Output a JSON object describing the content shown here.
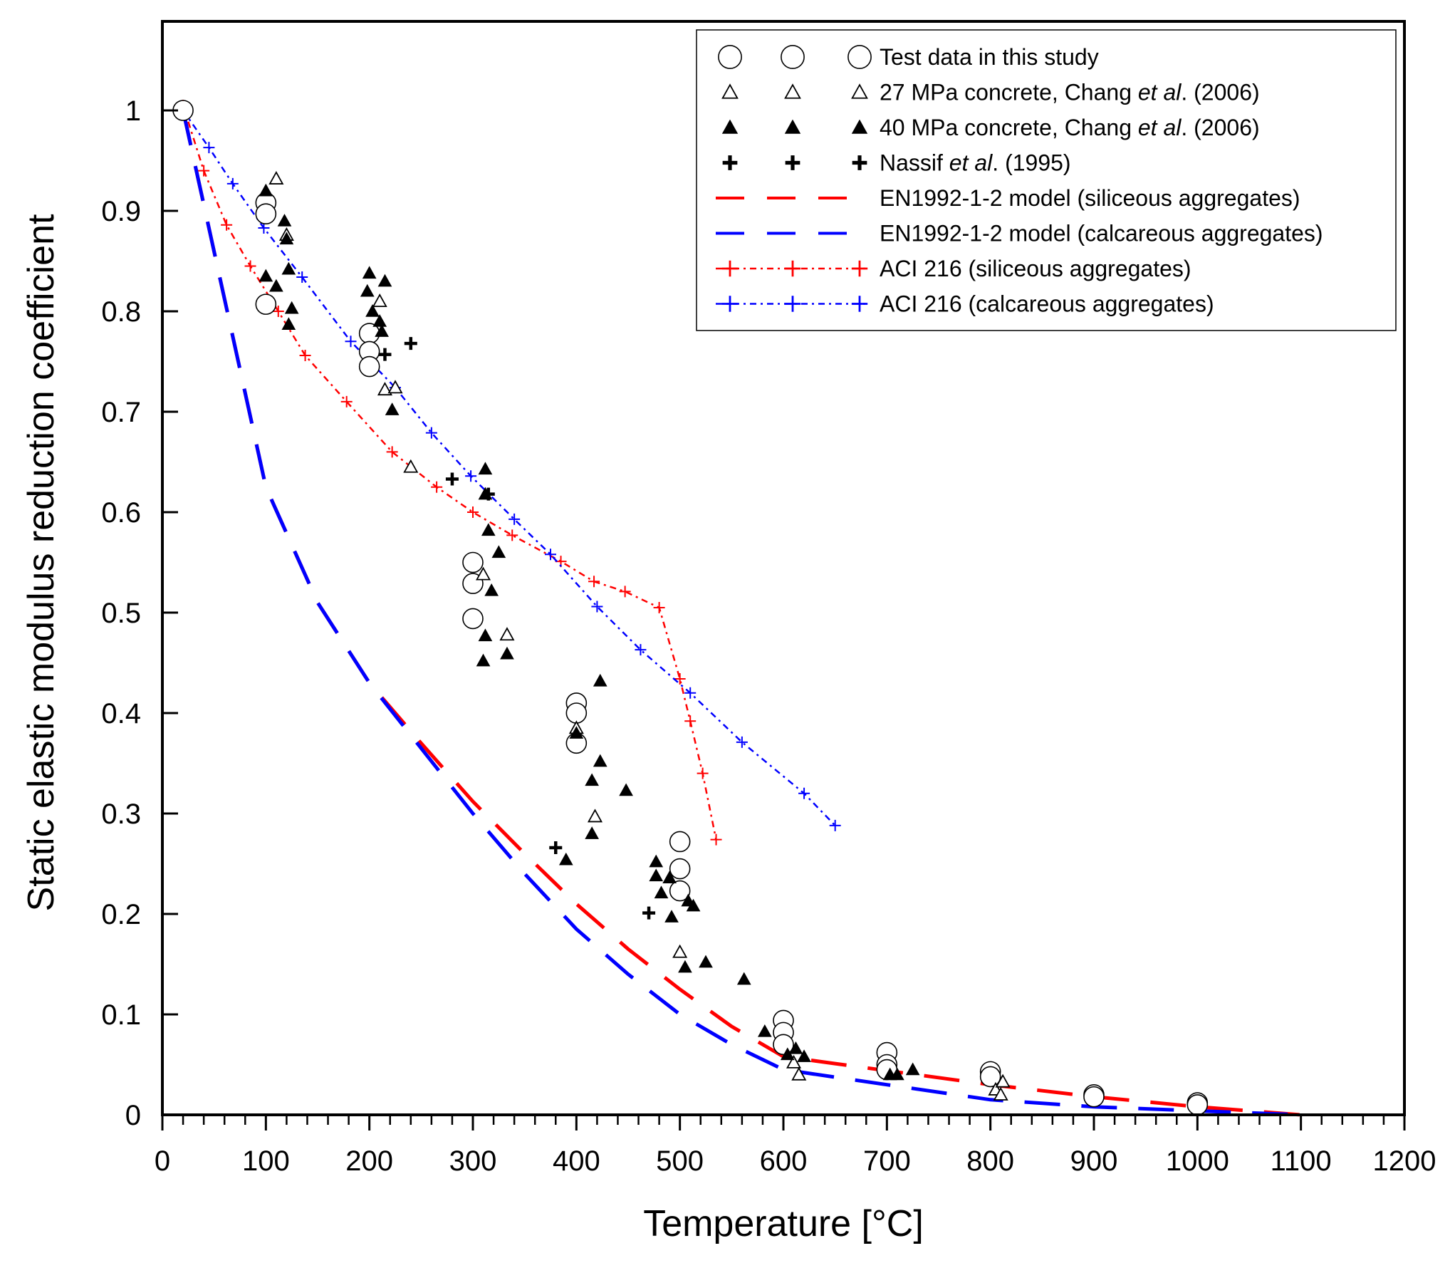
{
  "chart_data": {
    "type": "scatter",
    "xlabel": "Temperature [°C]",
    "ylabel": "Static elastic modulus reduction coefficient",
    "xlim": [
      0,
      1200
    ],
    "ylim": [
      0,
      1.1
    ],
    "x_ticks": [
      0,
      100,
      200,
      300,
      400,
      500,
      600,
      700,
      800,
      900,
      1000,
      1100,
      1200
    ],
    "y_ticks": [
      0,
      0.1,
      0.2,
      0.3,
      0.4,
      0.5,
      0.6,
      0.7,
      0.8,
      0.9,
      1
    ],
    "x_tick_labels": [
      "0",
      "100",
      "200",
      "300",
      "400",
      "500",
      "600",
      "700",
      "800",
      "900",
      "1000",
      "1100",
      "1200"
    ],
    "y_tick_labels": [
      "0",
      "0.1",
      "0.2",
      "0.3",
      "0.4",
      "0.5",
      "0.6",
      "0.7",
      "0.8",
      "0.9",
      "1"
    ],
    "grid": false,
    "legend_position": "top-right",
    "colors": {
      "red": "#ff0000",
      "blue": "#0000ff",
      "black": "#000000"
    },
    "series": [
      {
        "name": "Test data in this study",
        "legend_label": "Test data in this study",
        "marker": "open-circle",
        "color": "#000000",
        "points": [
          [
            20,
            1.0
          ],
          [
            100,
            0.908
          ],
          [
            100,
            0.897
          ],
          [
            100,
            0.807
          ],
          [
            200,
            0.778
          ],
          [
            200,
            0.76
          ],
          [
            200,
            0.745
          ],
          [
            300,
            0.55
          ],
          [
            300,
            0.529
          ],
          [
            300,
            0.494
          ],
          [
            400,
            0.41
          ],
          [
            400,
            0.4
          ],
          [
            400,
            0.37
          ],
          [
            500,
            0.272
          ],
          [
            500,
            0.245
          ],
          [
            500,
            0.223
          ],
          [
            600,
            0.094
          ],
          [
            600,
            0.082
          ],
          [
            600,
            0.07
          ],
          [
            700,
            0.062
          ],
          [
            700,
            0.05
          ],
          [
            700,
            0.045
          ],
          [
            800,
            0.043
          ],
          [
            800,
            0.038
          ],
          [
            900,
            0.02
          ],
          [
            900,
            0.018
          ],
          [
            1000,
            0.012
          ],
          [
            1000,
            0.01
          ]
        ]
      },
      {
        "name": "27 MPa concrete, Chang et al. (2006)",
        "legend_label_prefix": "27 MPa concrete, Chang ",
        "legend_label_italic": "et al",
        "legend_label_suffix": ". (2006)",
        "marker": "open-triangle",
        "color": "#000000",
        "points": [
          [
            110,
            0.932
          ],
          [
            120,
            0.876
          ],
          [
            210,
            0.81
          ],
          [
            215,
            0.722
          ],
          [
            225,
            0.724
          ],
          [
            240,
            0.645
          ],
          [
            310,
            0.538
          ],
          [
            333,
            0.478
          ],
          [
            400,
            0.385
          ],
          [
            418,
            0.297
          ],
          [
            500,
            0.162
          ],
          [
            610,
            0.052
          ],
          [
            615,
            0.04
          ],
          [
            805,
            0.025
          ],
          [
            812,
            0.033
          ],
          [
            810,
            0.02
          ]
        ]
      },
      {
        "name": "40 MPa concrete, Chang et al. (2006)",
        "legend_label_prefix": "40 MPa concrete, Chang ",
        "legend_label_italic": "et al",
        "legend_label_suffix": ". (2006)",
        "marker": "filled-triangle",
        "color": "#000000",
        "points": [
          [
            100,
            0.92
          ],
          [
            100,
            0.835
          ],
          [
            110,
            0.825
          ],
          [
            118,
            0.89
          ],
          [
            120,
            0.872
          ],
          [
            122,
            0.842
          ],
          [
            125,
            0.803
          ],
          [
            122,
            0.787
          ],
          [
            200,
            0.838
          ],
          [
            198,
            0.82
          ],
          [
            203,
            0.8
          ],
          [
            210,
            0.79
          ],
          [
            212,
            0.78
          ],
          [
            215,
            0.83
          ],
          [
            222,
            0.702
          ],
          [
            312,
            0.643
          ],
          [
            312,
            0.618
          ],
          [
            315,
            0.582
          ],
          [
            318,
            0.522
          ],
          [
            325,
            0.56
          ],
          [
            312,
            0.477
          ],
          [
            310,
            0.452
          ],
          [
            333,
            0.459
          ],
          [
            400,
            0.38
          ],
          [
            415,
            0.333
          ],
          [
            415,
            0.28
          ],
          [
            423,
            0.352
          ],
          [
            423,
            0.432
          ],
          [
            448,
            0.323
          ],
          [
            390,
            0.254
          ],
          [
            477,
            0.252
          ],
          [
            477,
            0.238
          ],
          [
            482,
            0.221
          ],
          [
            490,
            0.236
          ],
          [
            492,
            0.197
          ],
          [
            505,
            0.147
          ],
          [
            508,
            0.213
          ],
          [
            513,
            0.208
          ],
          [
            525,
            0.152
          ],
          [
            562,
            0.135
          ],
          [
            582,
            0.083
          ],
          [
            604,
            0.06
          ],
          [
            612,
            0.066
          ],
          [
            620,
            0.058
          ],
          [
            725,
            0.045
          ],
          [
            703,
            0.04
          ],
          [
            710,
            0.04
          ]
        ]
      },
      {
        "name": "Nassif et al. (1995)",
        "legend_label_prefix": "Nassif ",
        "legend_label_italic": "et al",
        "legend_label_suffix": ". (1995)",
        "marker": "bold-plus",
        "color": "#000000",
        "points": [
          [
            215,
            0.757
          ],
          [
            240,
            0.768
          ],
          [
            280,
            0.633
          ],
          [
            315,
            0.618
          ],
          [
            380,
            0.266
          ],
          [
            470,
            0.201
          ]
        ]
      },
      {
        "name": "EN1992-1-2 model (siliceous aggregates)",
        "legend_label": "EN1992-1-2 model (siliceous aggregates)",
        "marker": "none",
        "line": "long-dash",
        "color": "#ff0000",
        "points": [
          [
            20,
            1.0
          ],
          [
            100,
            0.625
          ],
          [
            150,
            0.51
          ],
          [
            200,
            0.43
          ],
          [
            250,
            0.37
          ],
          [
            300,
            0.312
          ],
          [
            350,
            0.26
          ],
          [
            400,
            0.21
          ],
          [
            450,
            0.165
          ],
          [
            500,
            0.125
          ],
          [
            550,
            0.088
          ],
          [
            600,
            0.058
          ],
          [
            650,
            0.051
          ],
          [
            700,
            0.044
          ],
          [
            800,
            0.03
          ],
          [
            900,
            0.018
          ],
          [
            1000,
            0.008
          ],
          [
            1100,
            0.0
          ]
        ]
      },
      {
        "name": "EN1992-1-2 model (calcareous aggregates)",
        "legend_label": "EN1992-1-2 model (calcareous aggregates)",
        "marker": "none",
        "line": "long-dash",
        "color": "#0000ff",
        "points": [
          [
            20,
            1.0
          ],
          [
            100,
            0.625
          ],
          [
            150,
            0.51
          ],
          [
            200,
            0.43
          ],
          [
            250,
            0.365
          ],
          [
            300,
            0.3
          ],
          [
            350,
            0.24
          ],
          [
            400,
            0.185
          ],
          [
            450,
            0.14
          ],
          [
            500,
            0.1
          ],
          [
            550,
            0.07
          ],
          [
            600,
            0.045
          ],
          [
            700,
            0.03
          ],
          [
            800,
            0.015
          ],
          [
            900,
            0.008
          ],
          [
            1000,
            0.004
          ],
          [
            1100,
            0.0
          ]
        ]
      },
      {
        "name": "ACI 216 (siliceous aggregates)",
        "legend_label": "ACI 216 (siliceous aggregates)",
        "marker": "thin-plus",
        "line": "dash-dot",
        "color": "#ff0000",
        "points": [
          [
            20,
            1.005
          ],
          [
            40,
            0.94
          ],
          [
            62,
            0.886
          ],
          [
            85,
            0.845
          ],
          [
            112,
            0.8
          ],
          [
            138,
            0.756
          ],
          [
            178,
            0.71
          ],
          [
            222,
            0.66
          ],
          [
            265,
            0.625
          ],
          [
            300,
            0.6
          ],
          [
            338,
            0.577
          ],
          [
            385,
            0.551
          ],
          [
            417,
            0.531
          ],
          [
            447,
            0.521
          ],
          [
            480,
            0.505
          ],
          [
            500,
            0.434
          ],
          [
            510,
            0.392
          ],
          [
            522,
            0.34
          ],
          [
            535,
            0.274
          ]
        ]
      },
      {
        "name": "ACI 216 (calcareous aggregates)",
        "legend_label": "ACI 216 (calcareous aggregates)",
        "marker": "thin-plus",
        "line": "dash-dot",
        "color": "#0000ff",
        "points": [
          [
            20,
            1.0
          ],
          [
            45,
            0.963
          ],
          [
            68,
            0.927
          ],
          [
            98,
            0.883
          ],
          [
            135,
            0.834
          ],
          [
            182,
            0.77
          ],
          [
            225,
            0.724
          ],
          [
            260,
            0.679
          ],
          [
            298,
            0.636
          ],
          [
            340,
            0.593
          ],
          [
            375,
            0.558
          ],
          [
            420,
            0.506
          ],
          [
            462,
            0.463
          ],
          [
            510,
            0.42
          ],
          [
            560,
            0.371
          ],
          [
            620,
            0.32
          ],
          [
            650,
            0.288
          ]
        ]
      }
    ]
  }
}
